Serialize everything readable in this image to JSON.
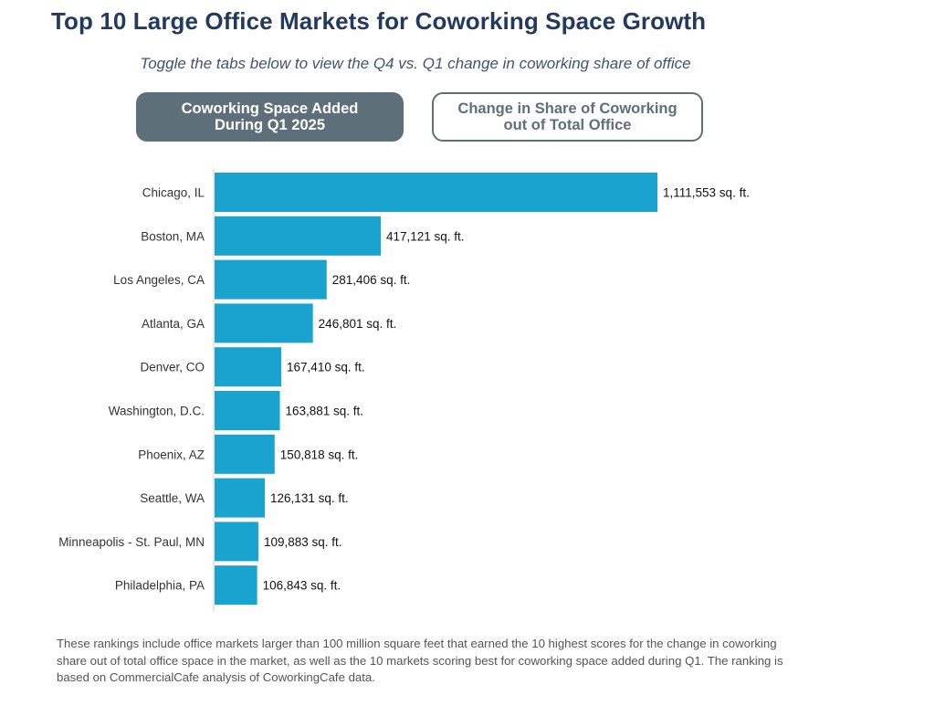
{
  "header": {
    "title": "Top 10 Large Office Markets for Coworking Space Growth",
    "subtitle": "Toggle the tabs below to view the Q4 vs. Q1 change in coworking share of office"
  },
  "tabs": [
    {
      "label": "Coworking Space Added\nDuring Q1 2025",
      "active": true
    },
    {
      "label": "Change in Share of Coworking\nout of Total Office",
      "active": false
    }
  ],
  "chart_data": {
    "type": "bar",
    "orientation": "horizontal",
    "categories": [
      "Chicago, IL",
      "Boston, MA",
      "Los Angeles, CA",
      "Atlanta, GA",
      "Denver, CO",
      "Washington, D.C.",
      "Phoenix, AZ",
      "Seattle, WA",
      "Minneapolis - St. Paul, MN",
      "Philadelphia, PA"
    ],
    "values": [
      1111553,
      417121,
      281406,
      246801,
      167410,
      163881,
      150818,
      126131,
      109883,
      106843
    ],
    "data_labels": [
      "1,111,553 sq. ft.",
      "417,121 sq. ft.",
      "281,406 sq. ft.",
      "246,801 sq. ft.",
      "167,410 sq. ft.",
      "163,881 sq. ft.",
      "150,818 sq. ft.",
      "126,131 sq. ft.",
      "109,883 sq. ft.",
      "106,843 sq. ft."
    ],
    "bar_color": "#1aa3cf",
    "grid": false,
    "legend": false
  },
  "footnote": "These rankings include office markets larger than 100 million square feet that earned the 10 highest scores for the change in coworking share out of total office space in the market, as well as the 10 markets scoring best for coworking space added during Q1. The ranking is based on CommercialCafe analysis of CoworkingCafe data."
}
